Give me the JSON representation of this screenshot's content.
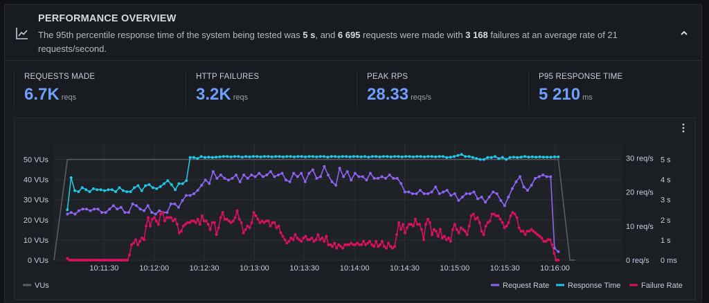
{
  "header": {
    "title": "PERFORMANCE OVERVIEW",
    "desc_1": "The 95th percentile response time of the system being tested was ",
    "desc_p95": "5 s",
    "desc_2": ", and ",
    "desc_requests": "6 695",
    "desc_3": " requests were made with ",
    "desc_failures": "3 168",
    "desc_4": " failures at an average rate of 21 requests/second."
  },
  "icons": {
    "header": "chart-line-icon",
    "collapse": "chevron-up-icon",
    "menu": "more-vertical-icon"
  },
  "stats": [
    {
      "label": "REQUESTS MADE",
      "value": "6.7K",
      "unit": "reqs"
    },
    {
      "label": "HTTP FAILURES",
      "value": "3.2K",
      "unit": "reqs"
    },
    {
      "label": "PEAK RPS",
      "value": "28.33",
      "unit": "reqs/s"
    },
    {
      "label": "P95 RESPONSE TIME",
      "value": "5 210",
      "unit": "ms"
    }
  ],
  "colors": {
    "vus": "#5c5f66",
    "request_rate": "#8f64f5",
    "response_time": "#21c6e6",
    "failure_rate": "#d8125e",
    "accent": "#6e9fff"
  },
  "chart_data": {
    "type": "line",
    "x_tick_labels": [
      "10:11:30",
      "10:12:00",
      "10:12:30",
      "10:13:00",
      "10:13:30",
      "10:14:00",
      "10:14:30",
      "10:15:00",
      "10:15:30",
      "10:16:00"
    ],
    "x_range": [
      "10:11:00",
      "10:16:40"
    ],
    "axes": {
      "left": {
        "unit": "VUs",
        "range": [
          0,
          55
        ],
        "ticks": [
          "0 VUs",
          "10 VUs",
          "20 VUs",
          "30 VUs",
          "40 VUs",
          "50 VUs"
        ]
      },
      "right_rps": {
        "unit": "req/s",
        "range": [
          0,
          32.5
        ],
        "ticks": [
          "0 req/s",
          "10 req/s",
          "20 req/s",
          "30 req/s"
        ]
      },
      "right_time": {
        "unit": "s",
        "range": [
          0,
          5.5
        ],
        "ticks": [
          "0 ms",
          "1 s",
          "2 s",
          "3 s",
          "4 s",
          "5 s"
        ]
      }
    },
    "legend": {
      "placement": "bottom",
      "left": [
        "VUs"
      ],
      "right": [
        "Request Rate",
        "Response Time",
        "Failure Rate"
      ]
    },
    "series": [
      {
        "name": "VUs",
        "axis": "left",
        "t": [
          0,
          8,
          11,
          302,
          309,
          312
        ],
        "values": [
          0,
          50,
          50,
          50,
          0,
          0
        ]
      },
      {
        "name": "Request Rate",
        "axis": "right_rps",
        "t0": 8,
        "dt": 3,
        "values": [
          13.5,
          14,
          13.5,
          14.5,
          15,
          15,
          14.5,
          15,
          15,
          14,
          14,
          15,
          16,
          15,
          15.5,
          14,
          14,
          16.5,
          16,
          15,
          14.5,
          16,
          14,
          13.5,
          14.5,
          14,
          14,
          16.5,
          16.5,
          15.5,
          17.5,
          19,
          19,
          19.5,
          20.5,
          22,
          23.5,
          22.5,
          26,
          24,
          25,
          24,
          23.5,
          24,
          25,
          23,
          25,
          24,
          25,
          24.5,
          25.5,
          24.5,
          25,
          26,
          24.5,
          25,
          25.5,
          23.5,
          23,
          25.5,
          24.5,
          25.5,
          23,
          25.5,
          26.5,
          24,
          24.5,
          27.5,
          25,
          23,
          22,
          27,
          24.5,
          26,
          23.5,
          25.5,
          24.5,
          24.5,
          23.5,
          25.5,
          24,
          24,
          24.5,
          24,
          25,
          24,
          24,
          22.5,
          20,
          20,
          19.5,
          19.5,
          20.5,
          19.5,
          19.5,
          20,
          21.5,
          19.5,
          20,
          20.5,
          19,
          19.5,
          17.5,
          18.5,
          19.5,
          19.5,
          20,
          18,
          18.5,
          17,
          18.5,
          20,
          19.5,
          17.5,
          16,
          18.5,
          21,
          23,
          24.5,
          21.5,
          20.5,
          22,
          24,
          24.5,
          25,
          24.5,
          24.5,
          3.5,
          2.5
        ]
      },
      {
        "name": "Response Time",
        "axis": "right_time",
        "t0": 8,
        "dt": 3,
        "values": [
          2.5,
          4.1,
          3.45,
          3.4,
          3.6,
          3.5,
          3.4,
          3.55,
          3.5,
          3.5,
          3.45,
          3.5,
          3.5,
          3.4,
          3.6,
          3.45,
          3.4,
          3.4,
          3.6,
          3.7,
          3.45,
          3.7,
          3.75,
          3.6,
          3.55,
          3.65,
          3.8,
          3.95,
          3.75,
          3.5,
          3.8,
          3.8,
          3.95,
          5.1,
          5.1,
          5.05,
          5.15,
          5.1,
          5.12,
          5.1,
          5.12,
          5.13,
          5.15,
          5.15,
          5.13,
          5.15,
          5.15,
          5.12,
          5.15,
          5.13,
          5.15,
          5.15,
          5.13,
          5.15,
          5.15,
          5.13,
          5.15,
          5.15,
          5.13,
          5.15,
          5.15,
          5.13,
          5.15,
          5.15,
          5.13,
          5.15,
          5.15,
          5.13,
          5.15,
          5.15,
          5.12,
          5.15,
          5.15,
          5.13,
          5.15,
          5.15,
          5.13,
          5.15,
          5.15,
          5.13,
          5.15,
          5.12,
          5.15,
          5.15,
          5.13,
          5.15,
          5.15,
          5.13,
          5.15,
          5.15,
          5.13,
          5.15,
          5.15,
          5.13,
          5.15,
          5.15,
          5.13,
          5.15,
          5.15,
          5.13,
          5.15,
          5.15,
          5.1,
          5.12,
          5.15,
          5.2,
          5.25,
          5.15,
          5.15,
          5.1,
          5.05,
          5.0,
          5.0,
          5.1,
          5.1,
          5.15,
          5.05,
          5.1,
          5.0,
          5.1,
          5.12,
          5.1,
          5.12,
          5.15,
          5.12,
          5.13,
          5.12,
          5.13,
          5.12,
          5.12,
          5.12,
          5.13,
          5.13
        ]
      },
      {
        "name": "Failure Rate",
        "axis": "right_rps",
        "t0": 8,
        "dt": 3,
        "values": [
          0.5,
          0,
          0,
          0,
          0,
          0,
          0,
          0,
          0,
          0,
          0,
          0,
          0,
          0,
          0,
          0,
          0,
          0,
          0,
          0,
          0,
          0,
          0,
          0,
          0,
          0,
          0,
          0,
          0,
          0,
          1.5,
          4.5,
          5,
          6,
          4.5,
          5.5,
          6.5,
          6,
          10,
          12.5,
          10,
          12,
          12.5,
          11.5,
          10.5,
          13.5,
          14,
          11.5,
          12.5,
          12.5,
          12.5,
          11.5,
          12,
          10.5,
          8,
          8.5,
          10,
          10.5,
          11,
          11,
          11.5,
          11.5,
          11,
          12,
          10.5,
          13,
          11.5,
          11.5,
          10.5,
          9,
          11,
          11,
          7.5,
          9.5,
          12.5,
          14,
          12,
          12,
          11.5,
          11,
          11.5,
          12.5,
          14.5,
          12,
          11,
          8,
          9,
          10,
          9.5,
          11,
          14,
          13,
          12,
          11,
          11.5,
          11,
          11.5,
          11.5,
          10,
          11,
          11,
          9.5,
          10,
          8,
          7,
          6,
          5,
          5.5,
          6.5,
          6,
          7.5,
          6.5,
          6,
          5.5,
          6.5,
          7,
          6,
          6,
          6.5,
          5.5,
          6,
          7.5,
          6,
          6.5,
          5.5,
          7,
          4.5,
          4.5,
          4,
          5,
          3.5,
          4.5,
          4,
          3.5,
          4.5,
          4.5,
          4.5,
          5,
          4.5,
          4.5,
          5,
          4.5,
          4.5,
          5.5,
          4.5,
          5,
          5.5,
          4.5,
          4,
          5.5,
          4,
          4.5,
          5.5,
          4,
          3.5,
          5,
          4,
          3.5,
          4,
          7.5,
          11,
          9,
          10.5,
          8,
          9.5,
          10.5,
          10.5,
          10,
          12,
          10.5,
          10.5,
          9,
          6,
          10.5,
          12,
          11,
          7.5,
          9,
          8.5,
          7,
          9,
          6.5,
          7,
          6,
          6.5,
          5.5,
          9,
          10.5,
          9,
          8,
          9.5,
          9,
          8.5,
          7.5,
          10,
          13,
          13.5,
          12,
          12.5,
          11,
          8.5,
          7.5,
          10,
          11,
          11.5,
          13.5,
          13.5,
          13,
          13,
          12,
          11,
          9.5,
          10,
          11,
          13,
          14,
          13.5,
          12.5,
          9.5,
          8.5,
          8.5,
          7.5,
          8.5,
          8.5,
          9,
          8.5,
          8,
          7.5,
          7,
          6.5,
          5.5,
          5.5,
          6,
          6,
          4.5,
          2,
          0,
          0
        ]
      }
    ]
  }
}
